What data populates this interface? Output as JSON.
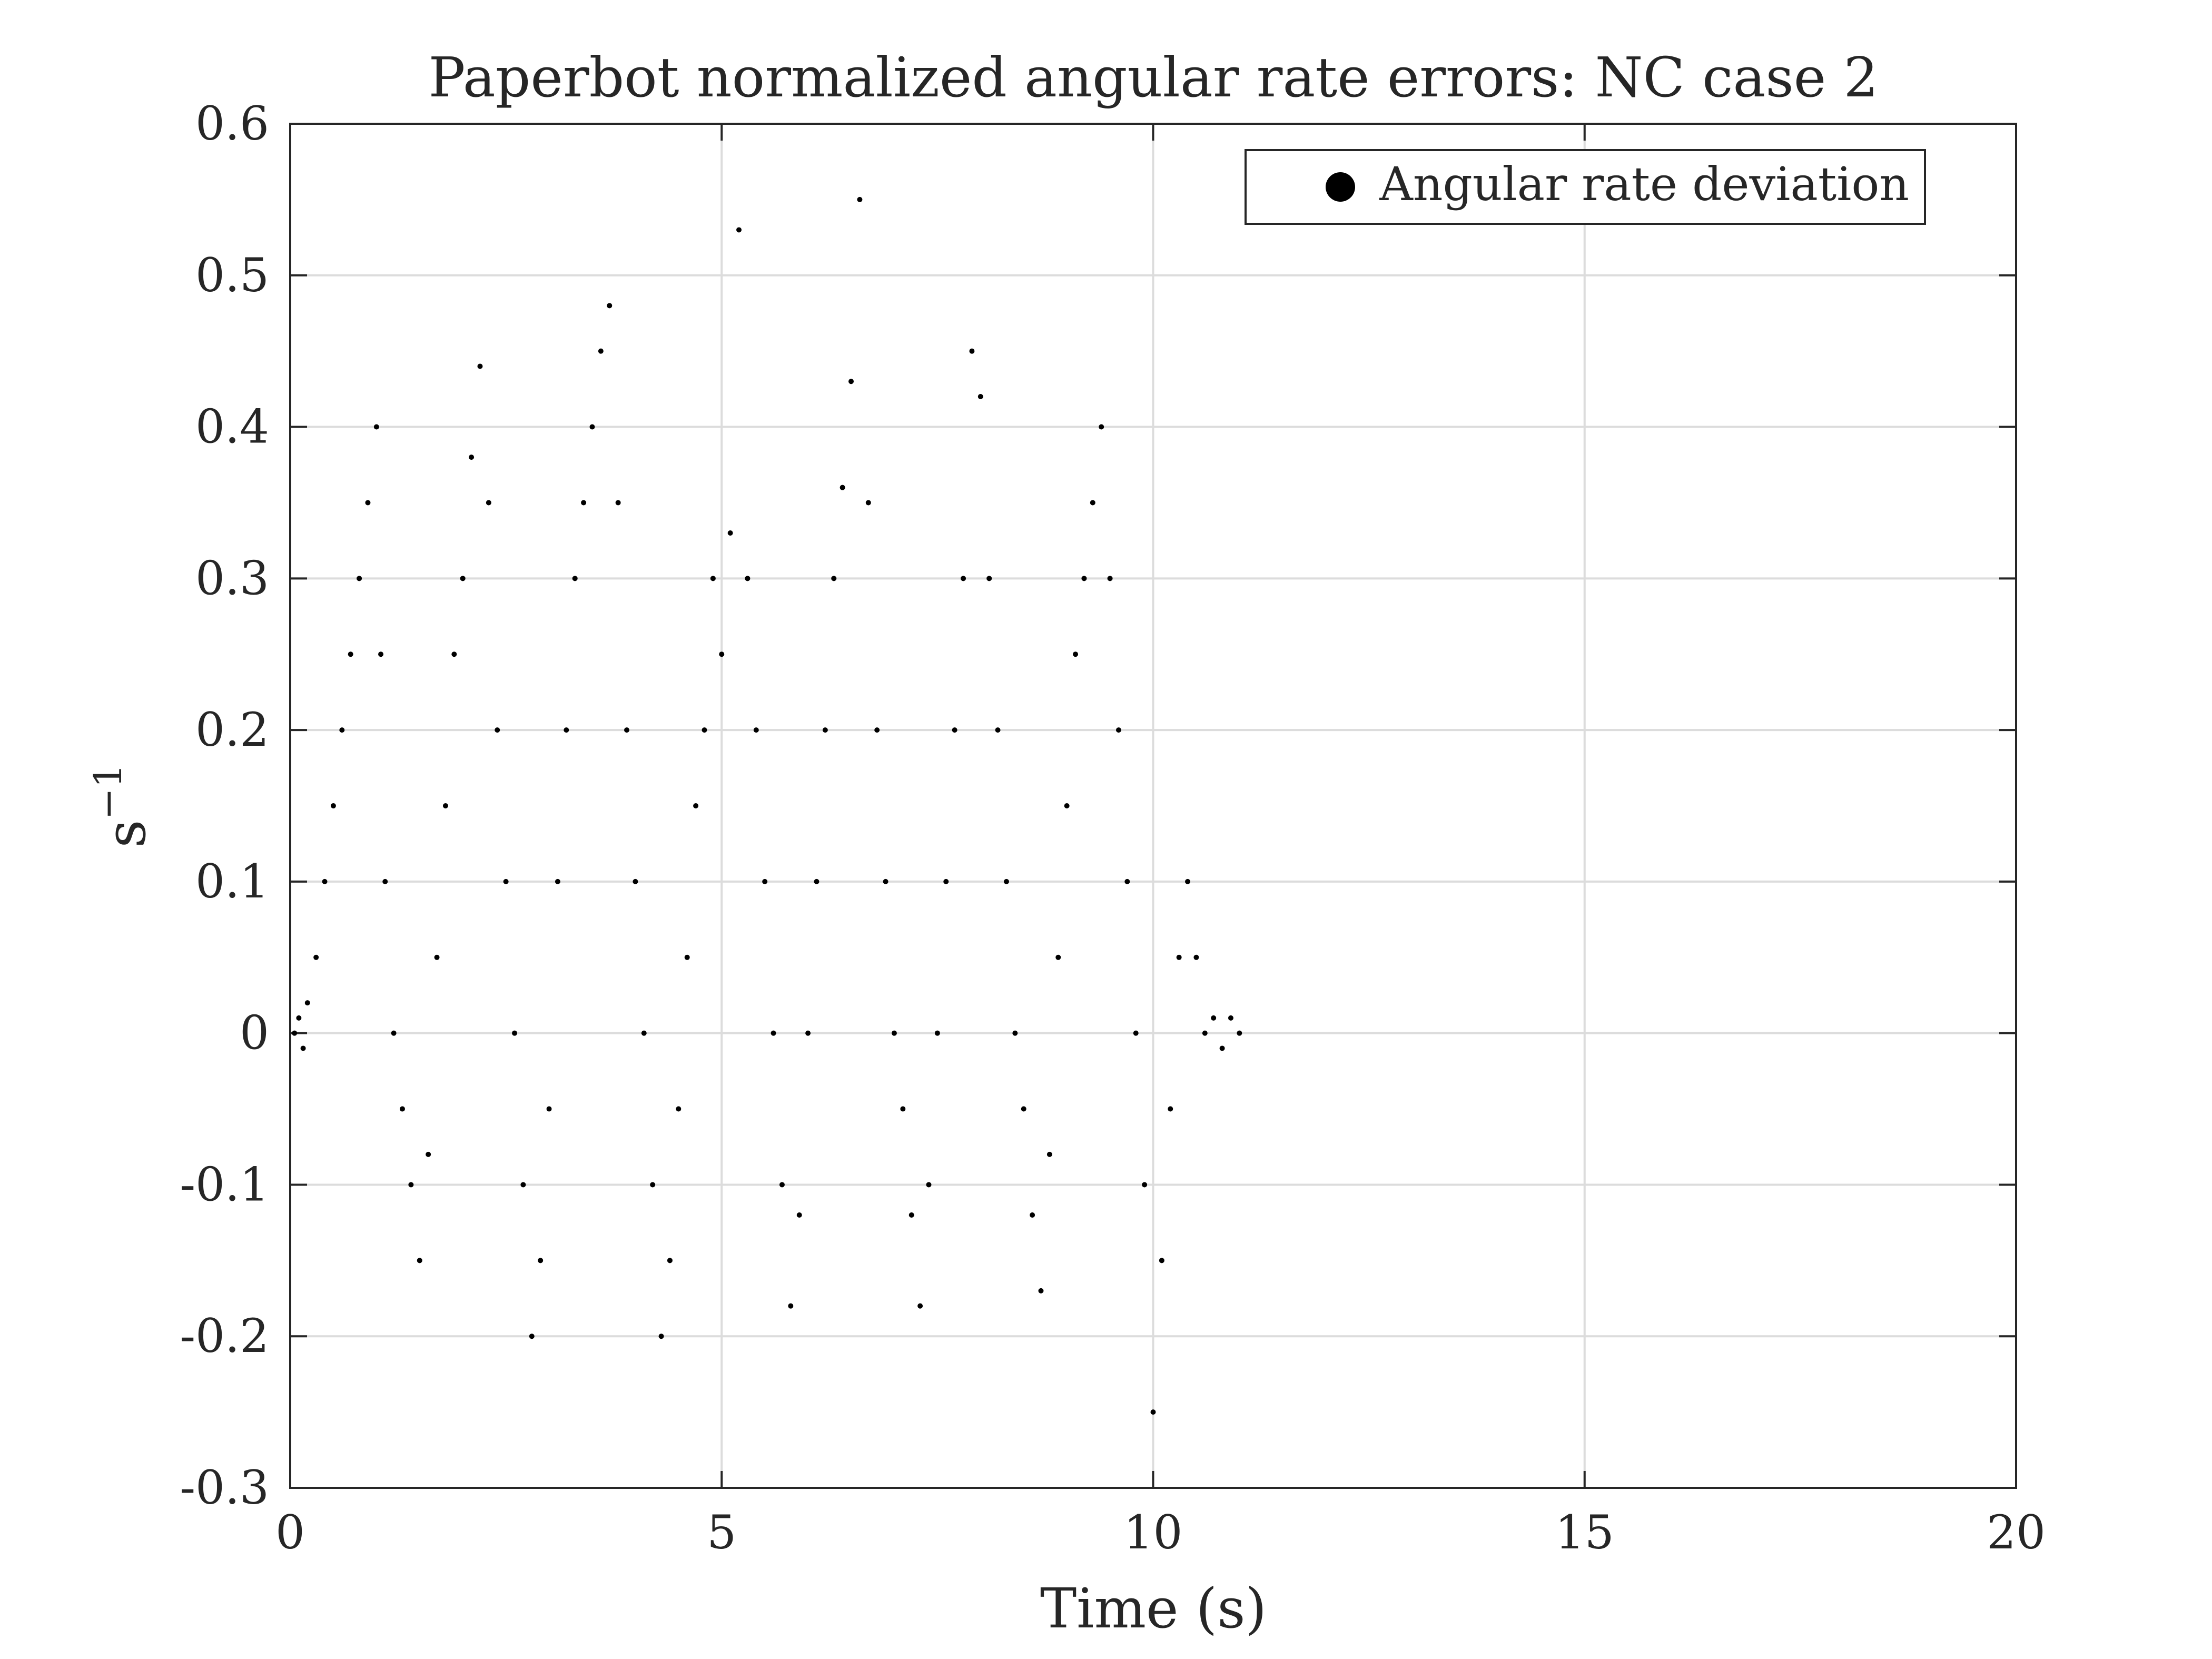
{
  "chart_data": {
    "type": "scatter",
    "title": "Paperbot normalized angular rate errors: NC case 2",
    "xlabel": "Time (s)",
    "ylabel_base": "s",
    "ylabel_exponent": "−1",
    "xlim": [
      0,
      20
    ],
    "ylim": [
      -0.3,
      0.6
    ],
    "xticks": [
      0,
      5,
      10,
      15,
      20
    ],
    "xtick_labels": [
      "0",
      "5",
      "10",
      "15",
      "20"
    ],
    "yticks": [
      -0.3,
      -0.2,
      -0.1,
      0,
      0.1,
      0.2,
      0.3,
      0.4,
      0.5,
      0.6
    ],
    "ytick_labels": [
      "-0.3",
      "-0.2",
      "-0.1",
      "0",
      "0.1",
      "0.2",
      "0.3",
      "0.4",
      "0.5",
      "0.6"
    ],
    "grid": true,
    "legend": {
      "position": "top-right",
      "entries": [
        "Angular rate deviation"
      ]
    },
    "series": [
      {
        "name": "Angular rate deviation",
        "marker_color": "#000000",
        "x": [
          0.05,
          0.1,
          0.15,
          0.2,
          0.3,
          0.4,
          0.5,
          0.6,
          0.7,
          0.8,
          0.9,
          1.0,
          1.05,
          1.1,
          1.2,
          1.3,
          1.4,
          1.5,
          1.6,
          1.7,
          1.8,
          1.9,
          2.0,
          2.1,
          2.2,
          2.3,
          2.4,
          2.5,
          2.6,
          2.7,
          2.8,
          2.9,
          3.0,
          3.1,
          3.2,
          3.3,
          3.4,
          3.5,
          3.6,
          3.7,
          3.8,
          3.9,
          4.0,
          4.1,
          4.2,
          4.3,
          4.4,
          4.5,
          4.6,
          4.7,
          4.8,
          4.9,
          5.0,
          5.1,
          5.2,
          5.3,
          5.4,
          5.5,
          5.6,
          5.7,
          5.8,
          5.9,
          6.0,
          6.1,
          6.2,
          6.3,
          6.4,
          6.5,
          6.6,
          6.7,
          6.8,
          6.9,
          7.0,
          7.1,
          7.2,
          7.3,
          7.4,
          7.5,
          7.6,
          7.7,
          7.8,
          7.9,
          8.0,
          8.1,
          8.2,
          8.3,
          8.4,
          8.5,
          8.6,
          8.7,
          8.8,
          8.9,
          9.0,
          9.1,
          9.2,
          9.3,
          9.4,
          9.5,
          9.6,
          9.7,
          9.8,
          9.9,
          10.0,
          10.1,
          10.2,
          10.3,
          10.4,
          10.5,
          10.6,
          10.7,
          10.8,
          10.9,
          11.0
        ],
        "y": [
          0.0,
          0.01,
          -0.01,
          0.02,
          0.05,
          0.1,
          0.15,
          0.2,
          0.25,
          0.3,
          0.35,
          0.4,
          0.25,
          0.1,
          0.0,
          -0.05,
          -0.1,
          -0.15,
          -0.08,
          0.05,
          0.15,
          0.25,
          0.3,
          0.38,
          0.44,
          0.35,
          0.2,
          0.1,
          0.0,
          -0.1,
          -0.2,
          -0.15,
          -0.05,
          0.1,
          0.2,
          0.3,
          0.35,
          0.4,
          0.45,
          0.48,
          0.35,
          0.2,
          0.1,
          0.0,
          -0.1,
          -0.2,
          -0.15,
          -0.05,
          0.05,
          0.15,
          0.2,
          0.3,
          0.25,
          0.33,
          0.53,
          0.3,
          0.2,
          0.1,
          0.0,
          -0.1,
          -0.18,
          -0.12,
          0.0,
          0.1,
          0.2,
          0.3,
          0.36,
          0.43,
          0.55,
          0.35,
          0.2,
          0.1,
          0.0,
          -0.05,
          -0.12,
          -0.18,
          -0.1,
          0.0,
          0.1,
          0.2,
          0.3,
          0.45,
          0.42,
          0.3,
          0.2,
          0.1,
          0.0,
          -0.05,
          -0.12,
          -0.17,
          -0.08,
          0.05,
          0.15,
          0.25,
          0.3,
          0.35,
          0.4,
          0.3,
          0.2,
          0.1,
          0.0,
          -0.1,
          -0.25,
          -0.15,
          -0.05,
          0.05,
          0.1,
          0.05,
          0.0,
          0.01,
          -0.01,
          0.01,
          0.0
        ]
      }
    ]
  }
}
